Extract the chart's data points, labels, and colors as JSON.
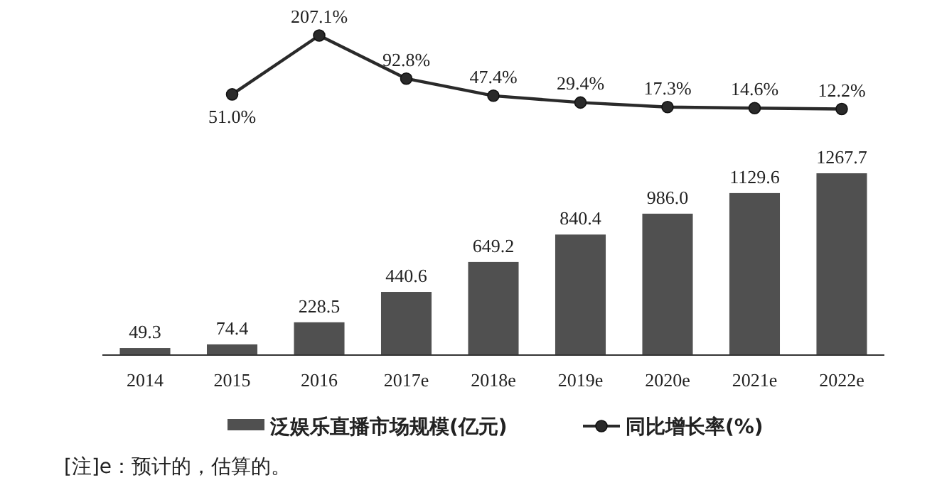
{
  "chart_data": [
    {
      "type": "line",
      "categories": [
        null,
        null,
        null,
        null,
        null,
        null,
        null,
        null,
        null
      ],
      "series": [
        {
          "name": "同比增长率(%)",
          "color": "#2a2a2a",
          "values": [
            null,
            51.0,
            207.1,
            92.8,
            47.4,
            29.4,
            17.3,
            14.6,
            12.2
          ],
          "value_labels": [
            null,
            "51.0%",
            "207.1%",
            "92.8%",
            "47.4%",
            "29.4%",
            "17.3%",
            "14.6%",
            "12.2%"
          ]
        }
      ],
      "marker": "circle",
      "legend": "bottom"
    },
    {
      "type": "bar",
      "categories": [
        "2014",
        "2015",
        "2016",
        "2017e",
        "2018e",
        "2019e",
        "2020e",
        "2021e",
        "2022e"
      ],
      "series": [
        {
          "name": "泛娱乐直播市场规模(亿元)",
          "color": "#505050",
          "values": [
            49.3,
            74.4,
            228.5,
            440.6,
            649.2,
            840.4,
            986.0,
            1129.6,
            1267.7
          ],
          "value_labels": [
            "49.3",
            "74.4",
            "228.5",
            "440.6",
            "649.2",
            "840.4",
            "986.0",
            "1129.6",
            "1267.7"
          ]
        }
      ],
      "legend": "bottom",
      "tick_labels": "x",
      "annotations": [
        "[注]e：预计的，估算的。"
      ]
    }
  ]
}
